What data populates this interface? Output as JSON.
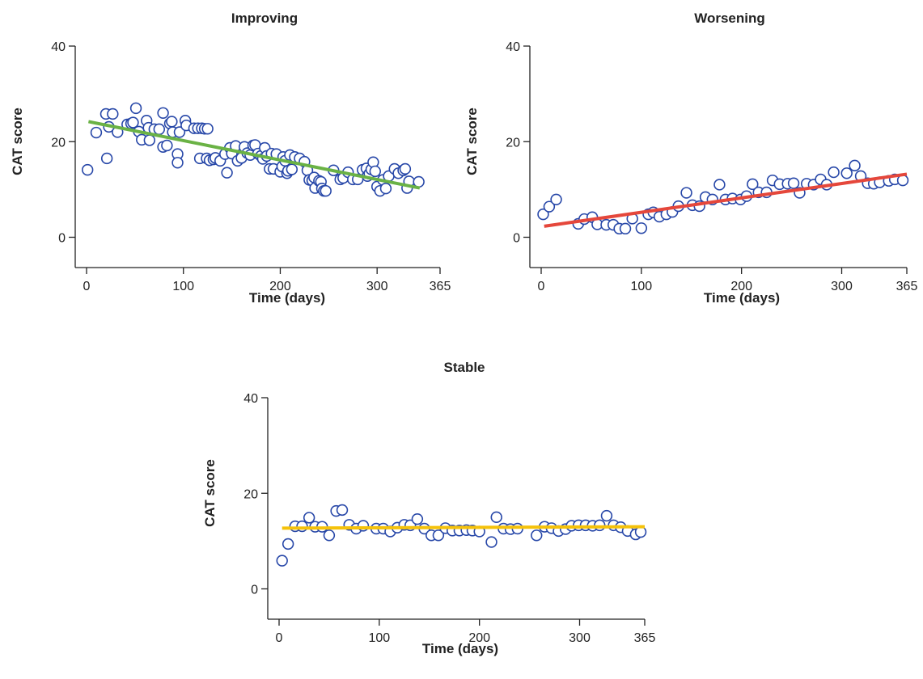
{
  "chart_data": [
    {
      "type": "scatter",
      "title": "Improving",
      "xlabel": "Time (days)",
      "ylabel": "CAT score",
      "xlim": [
        0,
        365
      ],
      "ylim": [
        -6,
        40
      ],
      "x_ticks": [
        0,
        100,
        200,
        300,
        365
      ],
      "y_ticks": [
        0,
        20,
        40
      ],
      "trend_color": "#6ab245",
      "trend": [
        [
          2,
          24.2
        ],
        [
          344,
          10.3
        ]
      ],
      "points": [
        [
          1,
          14.1
        ],
        [
          10,
          21.9
        ],
        [
          20,
          25.8
        ],
        [
          21,
          16.5
        ],
        [
          23,
          23.1
        ],
        [
          27,
          25.8
        ],
        [
          32,
          22.0
        ],
        [
          42,
          23.6
        ],
        [
          46,
          23.8
        ],
        [
          48,
          24.0
        ],
        [
          51,
          27.0
        ],
        [
          54,
          22.1
        ],
        [
          57,
          20.4
        ],
        [
          62,
          24.4
        ],
        [
          64,
          22.9
        ],
        [
          65,
          20.3
        ],
        [
          70,
          22.6
        ],
        [
          75,
          22.6
        ],
        [
          79,
          26.0
        ],
        [
          79,
          18.9
        ],
        [
          83,
          19.2
        ],
        [
          86,
          23.8
        ],
        [
          88,
          24.2
        ],
        [
          89,
          22.0
        ],
        [
          94,
          17.4
        ],
        [
          94,
          15.6
        ],
        [
          96,
          22.0
        ],
        [
          102,
          24.4
        ],
        [
          103,
          23.4
        ],
        [
          111,
          22.8
        ],
        [
          115,
          22.8
        ],
        [
          117,
          16.5
        ],
        [
          119,
          22.8
        ],
        [
          122,
          22.7
        ],
        [
          124,
          16.5
        ],
        [
          125,
          22.7
        ],
        [
          127,
          16.1
        ],
        [
          131,
          16.3
        ],
        [
          133,
          16.6
        ],
        [
          138,
          16.0
        ],
        [
          143,
          17.4
        ],
        [
          145,
          13.5
        ],
        [
          148,
          18.7
        ],
        [
          150,
          17.5
        ],
        [
          154,
          19.1
        ],
        [
          156,
          16.0
        ],
        [
          160,
          16.6
        ],
        [
          163,
          18.9
        ],
        [
          166,
          17.6
        ],
        [
          169,
          17.2
        ],
        [
          172,
          19.2
        ],
        [
          174,
          19.3
        ],
        [
          177,
          17.5
        ],
        [
          180,
          17.0
        ],
        [
          182,
          16.4
        ],
        [
          184,
          18.7
        ],
        [
          186,
          17.0
        ],
        [
          189,
          14.3
        ],
        [
          191,
          17.5
        ],
        [
          193,
          14.3
        ],
        [
          196,
          17.4
        ],
        [
          200,
          13.7
        ],
        [
          202,
          14.8
        ],
        [
          203,
          16.8
        ],
        [
          205,
          16.0
        ],
        [
          207,
          13.4
        ],
        [
          208,
          13.9
        ],
        [
          210,
          17.2
        ],
        [
          212,
          14.2
        ],
        [
          215,
          16.8
        ],
        [
          220,
          16.5
        ],
        [
          225,
          15.8
        ],
        [
          228,
          14.0
        ],
        [
          230,
          12.0
        ],
        [
          233,
          11.9
        ],
        [
          235,
          12.5
        ],
        [
          236,
          10.3
        ],
        [
          240,
          11.8
        ],
        [
          242,
          11.6
        ],
        [
          243,
          10.2
        ],
        [
          245,
          9.7
        ],
        [
          247,
          9.7
        ],
        [
          255,
          14.0
        ],
        [
          262,
          12.1
        ],
        [
          265,
          12.4
        ],
        [
          270,
          13.6
        ],
        [
          275,
          12.1
        ],
        [
          280,
          12.1
        ],
        [
          285,
          14.1
        ],
        [
          289,
          14.4
        ],
        [
          290,
          12.8
        ],
        [
          292,
          13.3
        ],
        [
          294,
          14.2
        ],
        [
          296,
          15.7
        ],
        [
          298,
          13.8
        ],
        [
          300,
          10.6
        ],
        [
          303,
          9.7
        ],
        [
          306,
          12.0
        ],
        [
          309,
          10.2
        ],
        [
          312,
          12.8
        ],
        [
          318,
          14.3
        ],
        [
          322,
          13.4
        ],
        [
          327,
          14.0
        ],
        [
          329,
          14.3
        ],
        [
          331,
          10.3
        ],
        [
          333,
          11.7
        ],
        [
          343,
          11.6
        ]
      ]
    },
    {
      "type": "scatter",
      "title": "Worsening",
      "xlabel": "Time (days)",
      "ylabel": "CAT score",
      "xlim": [
        0,
        365
      ],
      "ylim": [
        -6,
        40
      ],
      "x_ticks": [
        0,
        100,
        200,
        300,
        365
      ],
      "y_ticks": [
        0,
        20,
        40
      ],
      "trend_color": "#e5473b",
      "trend": [
        [
          3,
          2.3
        ],
        [
          365,
          13.2
        ]
      ],
      "points": [
        [
          2,
          4.8
        ],
        [
          8,
          6.4
        ],
        [
          15,
          7.9
        ],
        [
          37,
          2.8
        ],
        [
          43,
          3.8
        ],
        [
          51,
          4.2
        ],
        [
          56,
          2.7
        ],
        [
          65,
          2.6
        ],
        [
          72,
          2.6
        ],
        [
          78,
          1.8
        ],
        [
          84,
          1.8
        ],
        [
          91,
          3.9
        ],
        [
          100,
          1.9
        ],
        [
          107,
          4.8
        ],
        [
          112,
          5.2
        ],
        [
          118,
          4.3
        ],
        [
          125,
          4.8
        ],
        [
          131,
          5.3
        ],
        [
          137,
          6.5
        ],
        [
          145,
          9.3
        ],
        [
          151,
          6.7
        ],
        [
          158,
          6.5
        ],
        [
          164,
          8.4
        ],
        [
          171,
          7.9
        ],
        [
          178,
          11.0
        ],
        [
          184,
          7.9
        ],
        [
          191,
          8.1
        ],
        [
          199,
          7.9
        ],
        [
          205,
          8.6
        ],
        [
          211,
          11.1
        ],
        [
          217,
          9.4
        ],
        [
          225,
          9.4
        ],
        [
          231,
          11.9
        ],
        [
          238,
          11.1
        ],
        [
          246,
          11.2
        ],
        [
          252,
          11.3
        ],
        [
          258,
          9.3
        ],
        [
          265,
          11.2
        ],
        [
          272,
          11.0
        ],
        [
          279,
          12.1
        ],
        [
          285,
          11.0
        ],
        [
          292,
          13.6
        ],
        [
          305,
          13.4
        ],
        [
          313,
          15.0
        ],
        [
          319,
          12.8
        ],
        [
          326,
          11.3
        ],
        [
          332,
          11.2
        ],
        [
          338,
          11.5
        ],
        [
          347,
          11.8
        ],
        [
          353,
          12.1
        ],
        [
          361,
          11.9
        ]
      ]
    },
    {
      "type": "scatter",
      "title": "Stable",
      "xlabel": "Time (days)",
      "ylabel": "CAT score",
      "xlim": [
        0,
        365
      ],
      "ylim": [
        -6,
        40
      ],
      "x_ticks": [
        0,
        100,
        200,
        300,
        365
      ],
      "y_ticks": [
        0,
        20,
        40
      ],
      "trend_color": "#f5c20a",
      "trend": [
        [
          3,
          12.7
        ],
        [
          365,
          13.0
        ]
      ],
      "points": [
        [
          3,
          5.9
        ],
        [
          9,
          9.4
        ],
        [
          16,
          13.1
        ],
        [
          23,
          13.1
        ],
        [
          30,
          14.9
        ],
        [
          36,
          13.0
        ],
        [
          43,
          13.0
        ],
        [
          50,
          11.2
        ],
        [
          57,
          16.3
        ],
        [
          63,
          16.5
        ],
        [
          70,
          13.4
        ],
        [
          77,
          12.6
        ],
        [
          84,
          13.2
        ],
        [
          97,
          12.6
        ],
        [
          104,
          12.6
        ],
        [
          111,
          12.0
        ],
        [
          118,
          12.8
        ],
        [
          125,
          13.4
        ],
        [
          131,
          13.3
        ],
        [
          138,
          14.6
        ],
        [
          145,
          12.6
        ],
        [
          152,
          11.2
        ],
        [
          159,
          11.2
        ],
        [
          166,
          12.7
        ],
        [
          173,
          12.2
        ],
        [
          180,
          12.2
        ],
        [
          187,
          12.3
        ],
        [
          193,
          12.2
        ],
        [
          200,
          12.0
        ],
        [
          212,
          9.8
        ],
        [
          217,
          15.0
        ],
        [
          224,
          12.6
        ],
        [
          231,
          12.5
        ],
        [
          238,
          12.6
        ],
        [
          257,
          11.2
        ],
        [
          265,
          13.0
        ],
        [
          272,
          12.7
        ],
        [
          279,
          12.1
        ],
        [
          286,
          12.5
        ],
        [
          292,
          13.2
        ],
        [
          299,
          13.3
        ],
        [
          306,
          13.3
        ],
        [
          313,
          13.2
        ],
        [
          320,
          13.3
        ],
        [
          327,
          15.3
        ],
        [
          334,
          13.3
        ],
        [
          341,
          12.9
        ],
        [
          348,
          12.1
        ],
        [
          356,
          11.4
        ],
        [
          361,
          11.9
        ]
      ]
    }
  ]
}
